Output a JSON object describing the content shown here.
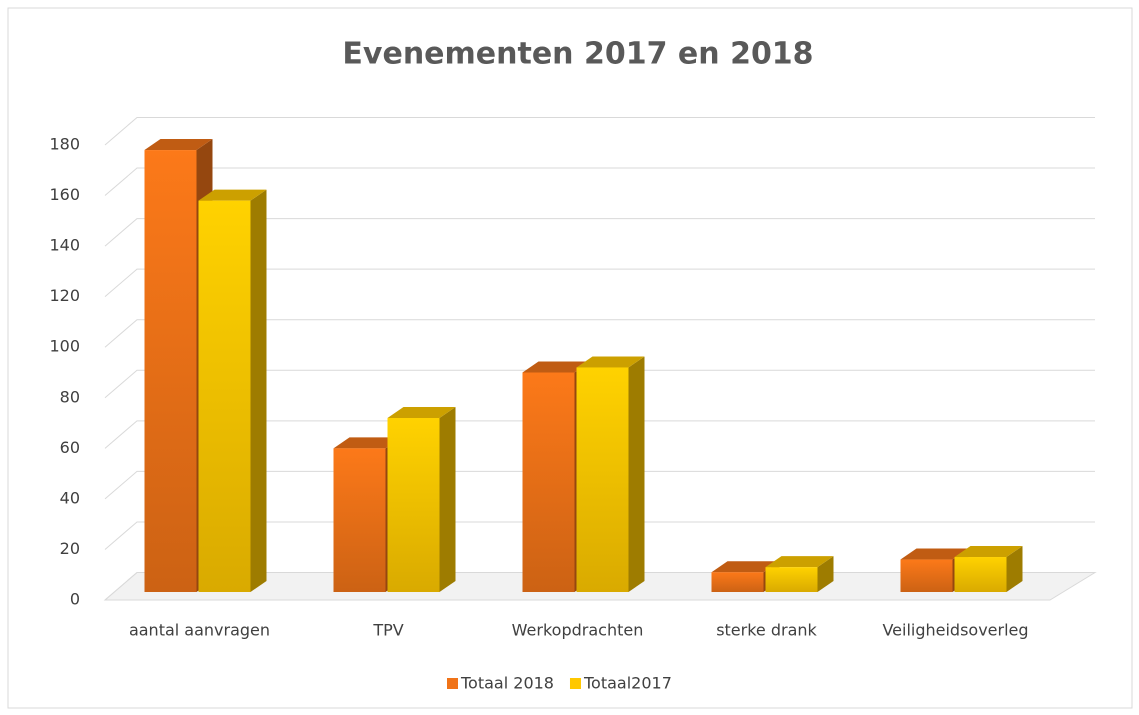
{
  "chart_data": {
    "type": "bar3d",
    "title": "Evenementen 2017 en 2018",
    "categories": [
      "aantal aanvragen",
      "TPV",
      "Werkopdrachten",
      "sterke drank",
      "Veiligheidsoverleg"
    ],
    "series": [
      {
        "name": "Totaal 2018",
        "color": "#f07318",
        "values": [
          178,
          60,
          90,
          11,
          16
        ]
      },
      {
        "name": "Totaal2017",
        "color": "#ffc800",
        "values": [
          158,
          72,
          92,
          13,
          17
        ]
      }
    ],
    "ylim": [
      0,
      180
    ],
    "yticks": [
      0,
      20,
      40,
      60,
      80,
      100,
      120,
      140,
      160,
      180
    ],
    "grid": true,
    "legend": "bottom"
  }
}
